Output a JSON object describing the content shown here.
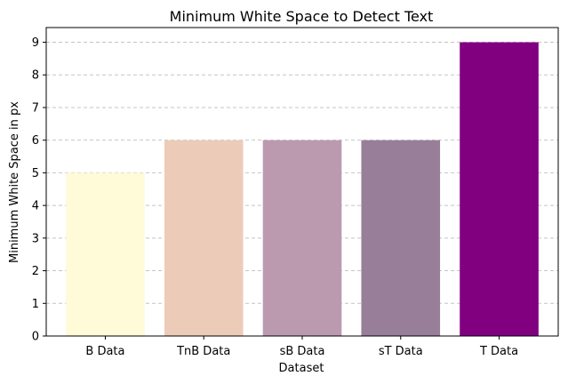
{
  "chart_data": {
    "type": "bar",
    "title": "Minimum White Space to Detect Text",
    "xlabel": "Dataset",
    "ylabel": "Minimum White Space in px",
    "categories": [
      "B Data",
      "TnB Data",
      "sB Data",
      "sT Data",
      "T Data"
    ],
    "values": [
      5,
      6,
      6,
      6,
      9
    ],
    "colors": [
      "#fffad8",
      "#ecccb8",
      "#bb9ab0",
      "#987e98",
      "#800080"
    ],
    "ylim": [
      0,
      9.45
    ],
    "yticks": [
      "0",
      "1",
      "2",
      "3",
      "4",
      "5",
      "6",
      "7",
      "8",
      "9"
    ],
    "grid": "y-dashed"
  }
}
